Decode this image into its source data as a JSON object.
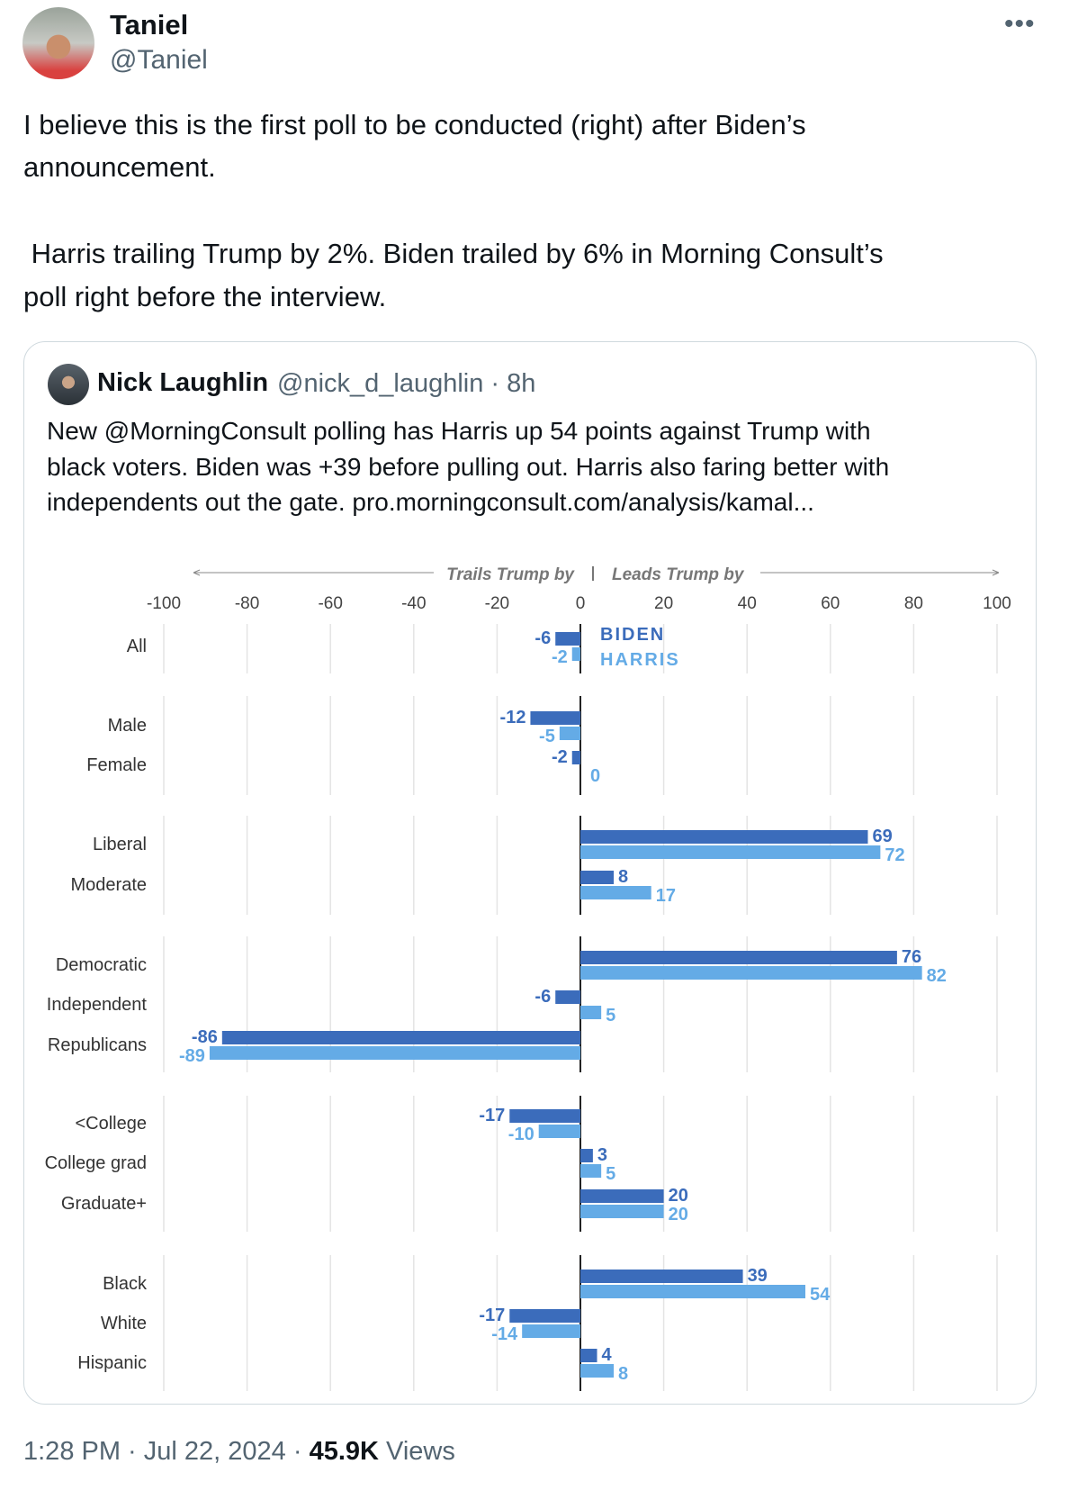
{
  "tweet": {
    "author_name": "Taniel",
    "author_handle": "@Taniel",
    "more_icon": "ellipsis-icon",
    "text_lines": [
      "I believe this is the first poll to be conducted (right) after Biden’s",
      "announcement.",
      " Harris trailing Trump by 2%. Biden trailed by 6% in Morning Consult’s",
      "poll right before the interview."
    ],
    "time": "1:28 PM",
    "date": "Jul 22, 2024",
    "views_count": "45.9K",
    "views_label": "Views"
  },
  "quote": {
    "author_name": "Nick Laughlin",
    "meta": "@nick_d_laughlin · 8h",
    "text_lines": [
      "New @MorningConsult polling has Harris up 54 points against Trump with",
      "black voters. Biden was +39 before pulling out. Harris also faring better with",
      "independents out the gate. pro.morningconsult.com/analysis/kamal..."
    ]
  },
  "chart_data": {
    "type": "bar",
    "orientation": "horizontal",
    "header_left": "Trails Trump by",
    "header_right": "Leads Trump by",
    "xlim": [
      -100,
      100
    ],
    "x_ticks": [
      "-100",
      "-80",
      "-60",
      "-40",
      "-20",
      "0",
      "20",
      "40",
      "60",
      "80",
      "100"
    ],
    "grid": true,
    "legend": {
      "placement": "inline-top",
      "entries": [
        "BIDEN",
        "HARRIS"
      ]
    },
    "colors": {
      "BIDEN": "#3b6cbb",
      "HARRIS": "#64abe6"
    },
    "groups": [
      [
        "All"
      ],
      [
        "Male",
        "Female"
      ],
      [
        "Liberal",
        "Moderate"
      ],
      [
        "Democratic",
        "Independent",
        "Republicans"
      ],
      [
        "<College",
        "College grad",
        "Graduate+"
      ],
      [
        "Black",
        "White",
        "Hispanic"
      ]
    ],
    "categories": [
      "All",
      "Male",
      "Female",
      "Liberal",
      "Moderate",
      "Democratic",
      "Independent",
      "Republicans",
      "<College",
      "College grad",
      "Graduate+",
      "Black",
      "White",
      "Hispanic"
    ],
    "series": [
      {
        "name": "BIDEN",
        "values": [
          -6,
          -12,
          -2,
          69,
          8,
          76,
          -6,
          -86,
          -17,
          3,
          20,
          39,
          -17,
          4
        ]
      },
      {
        "name": "HARRIS",
        "values": [
          -2,
          -5,
          0,
          72,
          17,
          82,
          5,
          -89,
          -10,
          5,
          20,
          54,
          -14,
          8
        ]
      }
    ]
  }
}
